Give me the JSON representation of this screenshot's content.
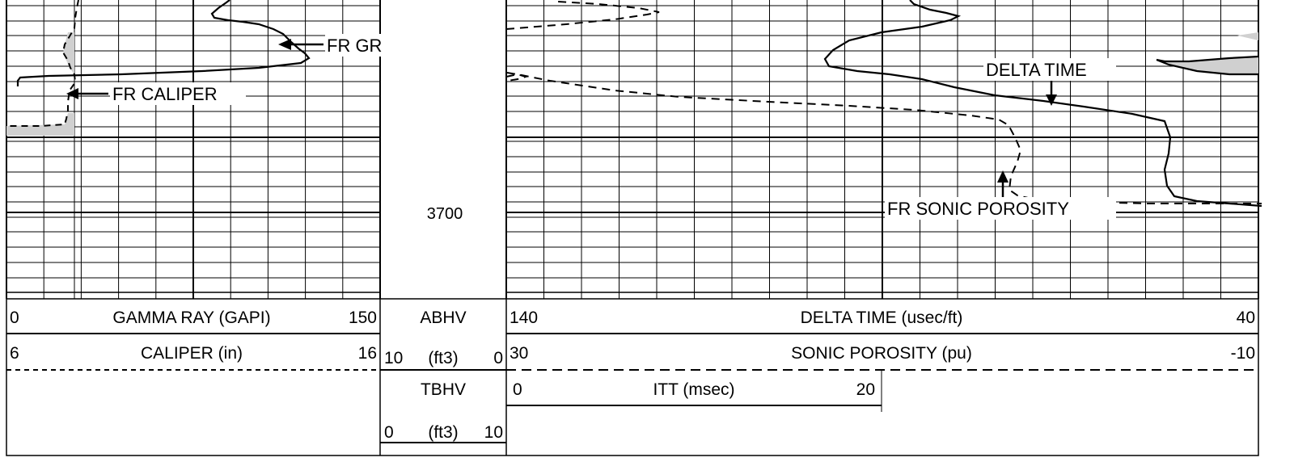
{
  "chart_data": {
    "type": "line",
    "depth_label": "3700",
    "tracks": {
      "track1": {
        "curves": [
          {
            "name": "GAMMA RAY (GAPI)",
            "left_scale": "0",
            "right_scale": "150",
            "style": "solid",
            "points": [
              [
                284,
                0
              ],
              [
                280,
                3
              ],
              [
                270,
                10
              ],
              [
                262,
                17
              ],
              [
                265,
                22
              ],
              [
                282,
                25
              ],
              [
                300,
                27
              ],
              [
                320,
                30
              ],
              [
                338,
                36
              ],
              [
                350,
                42
              ],
              [
                360,
                52
              ],
              [
                369,
                60
              ],
              [
                377,
                66
              ],
              [
                382,
                72
              ],
              [
                372,
                78
              ],
              [
                320,
                84
              ],
              [
                250,
                88
              ],
              [
                150,
                92
              ],
              [
                60,
                94
              ],
              [
                25,
                96
              ],
              [
                22,
                100
              ],
              [
                22,
                107
              ]
            ]
          },
          {
            "name": "CALIPER (in)",
            "left_scale": "6",
            "right_scale": "16",
            "style": "dashed",
            "points": [
              [
                97,
                0
              ],
              [
                95,
                10
              ],
              [
                93,
                22
              ],
              [
                92,
                35
              ],
              [
                86,
                45
              ],
              [
                80,
                55
              ],
              [
                78,
                65
              ],
              [
                84,
                75
              ],
              [
                87,
                84
              ],
              [
                92,
                92
              ],
              [
                93,
                102
              ],
              [
                86,
                112
              ],
              [
                84,
                126
              ],
              [
                84,
                137
              ],
              [
                82,
                147
              ],
              [
                80,
                154
              ],
              [
                50,
                156
              ],
              [
                20,
                156
              ],
              [
                8,
                156
              ]
            ]
          }
        ],
        "callouts": [
          "FR GR",
          "FR CALIPER"
        ]
      },
      "depth_track": {
        "curves": [
          {
            "name": "ABHV",
            "left_scale": "10",
            "unit": "(ft3)",
            "right_scale": "0",
            "style": "solid"
          },
          {
            "name": "TBHV",
            "left_scale": "0",
            "unit": "(ft3)",
            "right_scale": "10",
            "style": "solid"
          }
        ]
      },
      "track2": {
        "curves": [
          {
            "name": "DELTA TIME (usec/ft)",
            "left_scale": "140",
            "right_scale": "40",
            "style": "solid",
            "points": [
              [
                1125,
                0
              ],
              [
                1130,
                5
              ],
              [
                1150,
                12
              ],
              [
                1170,
                16
              ],
              [
                1185,
                20
              ],
              [
                1175,
                25
              ],
              [
                1140,
                33
              ],
              [
                1090,
                40
              ],
              [
                1050,
                50
              ],
              [
                1030,
                62
              ],
              [
                1020,
                73
              ],
              [
                1025,
                82
              ],
              [
                1060,
                88
              ],
              [
                1100,
                92
              ],
              [
                1140,
                98
              ],
              [
                1180,
                108
              ],
              [
                1230,
                118
              ],
              [
                1290,
                125
              ],
              [
                1340,
                132
              ],
              [
                1400,
                141
              ],
              [
                1440,
                150
              ],
              [
                1447,
                170
              ],
              [
                1445,
                190
              ],
              [
                1440,
                210
              ],
              [
                1443,
                230
              ],
              [
                1452,
                243
              ],
              [
                1480,
                249
              ],
              [
                1520,
                252
              ],
              [
                1560,
                255
              ]
            ]
          },
          {
            "name": "SONIC POROSITY (pu)",
            "left_scale": "30",
            "right_scale": "-10",
            "style": "dashed",
            "points": [
              [
                627,
                90
              ],
              [
                645,
                93
              ],
              [
                680,
                100
              ],
              [
                720,
                106
              ],
              [
                760,
                112
              ],
              [
                840,
                120
              ],
              [
                950,
                126
              ],
              [
                1050,
                131
              ],
              [
                1130,
                136
              ],
              [
                1200,
                143
              ],
              [
                1235,
                148
              ],
              [
                1247,
                155
              ],
              [
                1255,
                170
              ],
              [
                1262,
                186
              ],
              [
                1258,
                200
              ],
              [
                1250,
                218
              ],
              [
                1248,
                235
              ],
              [
                1258,
                242
              ],
              [
                1280,
                247
              ],
              [
                1340,
                250
              ],
              [
                1420,
                252
              ],
              [
                1500,
                252
              ],
              [
                1560,
                252
              ]
            ]
          },
          {
            "name": "ITT (msec)",
            "left_scale": "0",
            "right_scale": "20",
            "style": "solid"
          }
        ],
        "callouts": [
          "DELTA TIME",
          "FR SONIC POROSITY"
        ]
      }
    }
  },
  "colors": {
    "curve": "#000000",
    "grid": "#000000",
    "shade": "#d0d0d0"
  }
}
